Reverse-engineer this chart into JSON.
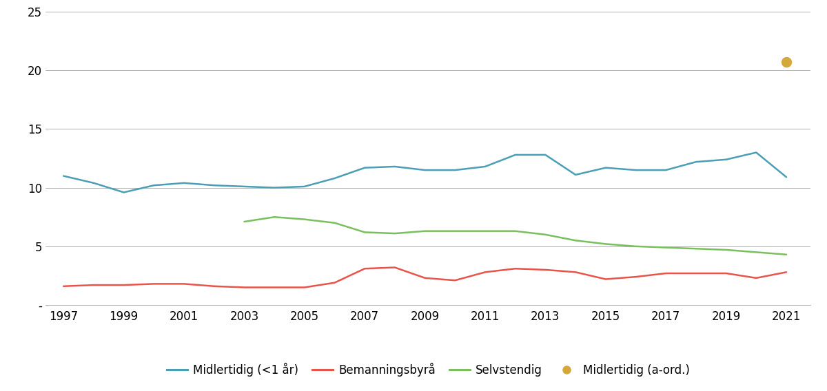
{
  "years": [
    1997,
    1998,
    1999,
    2000,
    2001,
    2002,
    2003,
    2004,
    2005,
    2006,
    2007,
    2008,
    2009,
    2010,
    2011,
    2012,
    2013,
    2014,
    2015,
    2016,
    2017,
    2018,
    2019,
    2020,
    2021
  ],
  "midlertidig": [
    11.0,
    10.4,
    9.6,
    10.2,
    10.4,
    10.2,
    10.1,
    10.0,
    10.1,
    10.8,
    11.7,
    11.8,
    11.5,
    11.5,
    11.8,
    12.8,
    12.8,
    11.1,
    11.7,
    11.5,
    11.5,
    12.2,
    12.4,
    13.0,
    10.9
  ],
  "bemanningsbyraa": [
    1.6,
    1.7,
    1.7,
    1.8,
    1.8,
    1.6,
    1.5,
    1.5,
    1.5,
    1.9,
    3.1,
    3.2,
    2.3,
    2.1,
    2.8,
    3.1,
    3.0,
    2.8,
    2.2,
    2.4,
    2.7,
    2.7,
    2.7,
    2.3,
    2.8
  ],
  "selvstendig": [
    null,
    null,
    null,
    null,
    null,
    null,
    7.1,
    7.5,
    7.3,
    7.0,
    6.2,
    6.1,
    6.3,
    6.3,
    6.3,
    6.3,
    6.0,
    5.5,
    5.2,
    5.0,
    4.9,
    4.8,
    4.7,
    4.5,
    4.3
  ],
  "midlertidig_aord_year": 2021,
  "midlertidig_aord_value": 20.7,
  "color_midlertidig": "#4a9eb5",
  "color_bemanningsbyraa": "#e8534a",
  "color_selvstendig": "#7abf5e",
  "color_aord": "#d4a83a",
  "ylim": [
    0,
    25
  ],
  "yticks": [
    0,
    5,
    10,
    15,
    20,
    25
  ],
  "ytick_labels": [
    "-",
    "5",
    "10",
    "15",
    "20",
    "25"
  ],
  "xticks": [
    1997,
    1999,
    2001,
    2003,
    2005,
    2007,
    2009,
    2011,
    2013,
    2015,
    2017,
    2019,
    2021
  ],
  "legend_labels": [
    "Midlertidig (<1 år)",
    "Bemanningsbyrå",
    "Selvstendig",
    "Midlertidig (a-ord.)"
  ],
  "background_color": "#ffffff",
  "grid_color": "#b0b0b0",
  "line_width": 1.8,
  "marker_size": 10
}
